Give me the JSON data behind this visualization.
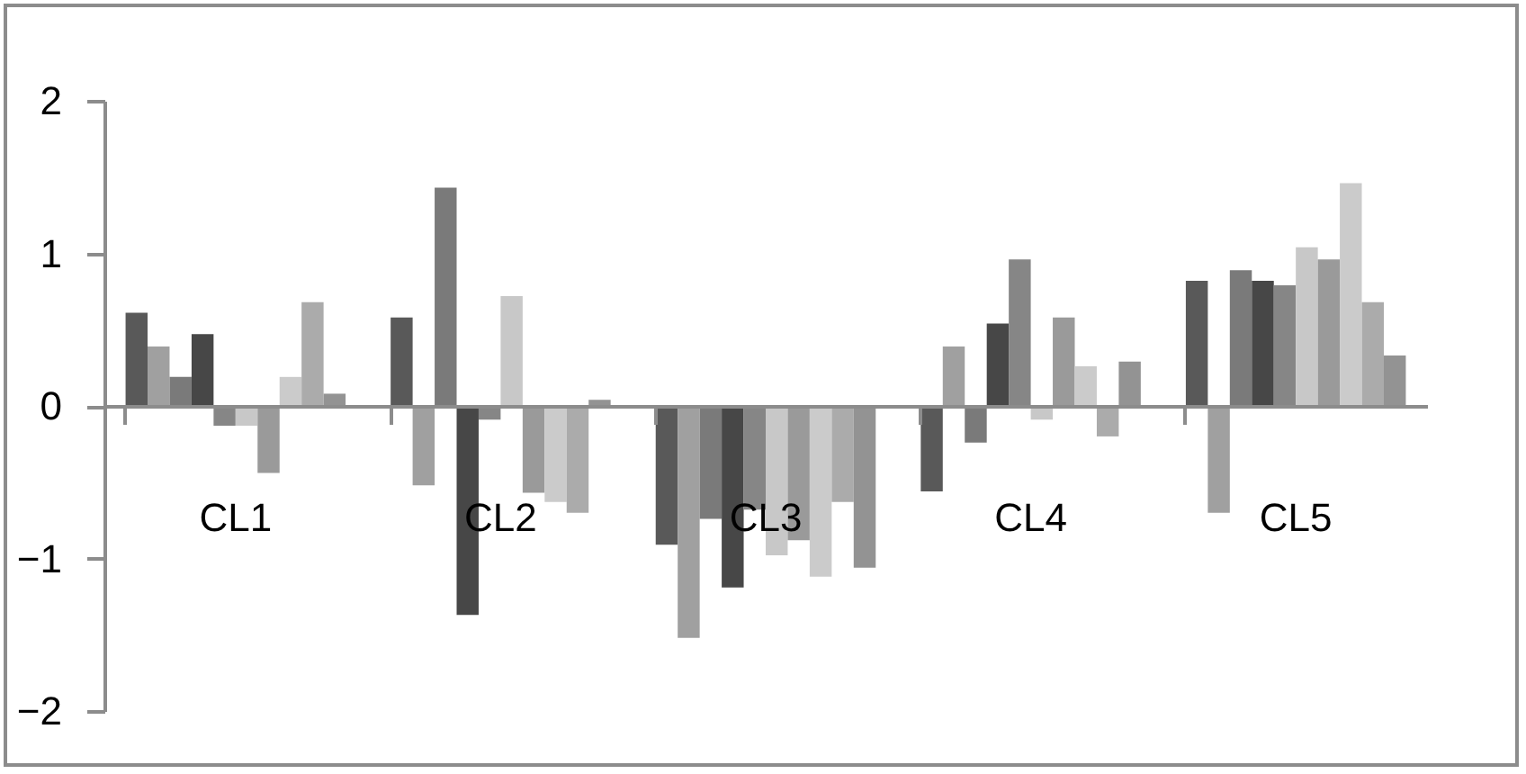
{
  "chart_data": {
    "type": "bar",
    "categories": [
      "CL1",
      "CL2",
      "CL3",
      "CL4",
      "CL5"
    ],
    "series": [
      {
        "color": "#595959",
        "values": [
          0.61,
          0.58,
          -0.91,
          -0.56,
          0.82
        ]
      },
      {
        "color": "#a0a0a0",
        "values": [
          0.39,
          -0.52,
          -1.52,
          0.39,
          -0.7
        ]
      },
      {
        "color": "#7a7a7a",
        "values": [
          0.19,
          1.43,
          -0.74,
          -0.24,
          0.89
        ]
      },
      {
        "color": "#474747",
        "values": [
          0.47,
          -1.37,
          -1.19,
          0.54,
          0.82
        ]
      },
      {
        "color": "#868686",
        "values": [
          -0.13,
          -0.09,
          -0.68,
          0.96,
          0.79
        ]
      },
      {
        "color": "#c8c8c8",
        "values": [
          -0.13,
          0.72,
          -0.98,
          -0.09,
          1.04
        ]
      },
      {
        "color": "#9a9a9a",
        "values": [
          -0.44,
          -0.57,
          -0.88,
          0.58,
          0.96
        ]
      },
      {
        "color": "#cbcbcb",
        "values": [
          0.19,
          -0.63,
          -1.12,
          0.26,
          1.46
        ]
      },
      {
        "color": "#ababab",
        "values": [
          0.68,
          -0.7,
          -0.63,
          -0.2,
          0.68
        ]
      },
      {
        "color": "#939393",
        "values": [
          0.08,
          0.04,
          -1.06,
          0.29,
          0.33
        ]
      }
    ],
    "ylim": [
      -2,
      2
    ],
    "yticks": [
      -2,
      -1,
      0,
      1,
      2
    ],
    "grid": false,
    "legend": false
  }
}
